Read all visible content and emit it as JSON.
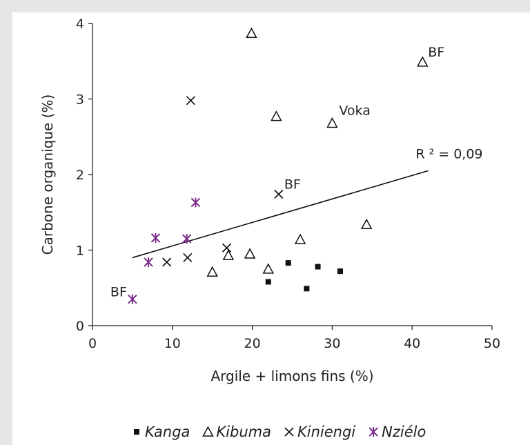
{
  "chart_data": {
    "type": "scatter",
    "title": "",
    "xlabel": "Argile + limons fins (%)",
    "ylabel": "Carbone organique (%)",
    "xlim": [
      0,
      50
    ],
    "ylim": [
      0,
      4
    ],
    "xticks": [
      "0",
      "10",
      "20",
      "30",
      "40",
      "50"
    ],
    "yticks": [
      "0",
      "1",
      "2",
      "3",
      "4"
    ],
    "grid": false,
    "legend_position": "bottom",
    "series": [
      {
        "name": "Kanga",
        "marker": "filled-square",
        "color": "#111111",
        "points": [
          [
            22.0,
            0.58
          ],
          [
            24.5,
            0.83
          ],
          [
            26.8,
            0.49
          ],
          [
            28.2,
            0.78
          ],
          [
            31.0,
            0.72
          ]
        ]
      },
      {
        "name": "Kibuma",
        "marker": "open-triangle",
        "color": "#111111",
        "points": [
          [
            19.9,
            3.87
          ],
          [
            41.3,
            3.49
          ],
          [
            23.0,
            2.77
          ],
          [
            30.0,
            2.68
          ],
          [
            34.3,
            1.34
          ],
          [
            26.0,
            1.14
          ],
          [
            19.7,
            0.95
          ],
          [
            17.0,
            0.93
          ],
          [
            15.0,
            0.71
          ],
          [
            22.0,
            0.75
          ]
        ]
      },
      {
        "name": "Kiniengi",
        "marker": "cross",
        "color": "#111111",
        "points": [
          [
            12.3,
            2.98
          ],
          [
            23.3,
            1.74
          ],
          [
            16.8,
            1.03
          ],
          [
            11.9,
            0.9
          ],
          [
            9.3,
            0.84
          ]
        ]
      },
      {
        "name": "Nziélo",
        "marker": "asterisk",
        "color": "#7a2a88",
        "points": [
          [
            5.0,
            0.35
          ],
          [
            7.0,
            0.84
          ],
          [
            7.9,
            1.16
          ],
          [
            11.8,
            1.15
          ],
          [
            12.9,
            1.63
          ]
        ]
      }
    ],
    "trendline": {
      "x": [
        5,
        42
      ],
      "y": [
        0.9,
        2.05
      ],
      "label": "R ² = 0,09"
    },
    "annotations": [
      {
        "text": "BF",
        "x": 41.3,
        "y": 3.49
      },
      {
        "text": "Voka",
        "x": 30.0,
        "y": 2.68
      },
      {
        "text": "BF",
        "x": 23.3,
        "y": 1.74
      },
      {
        "text": "BF",
        "x": 5.0,
        "y": 0.35
      }
    ]
  }
}
